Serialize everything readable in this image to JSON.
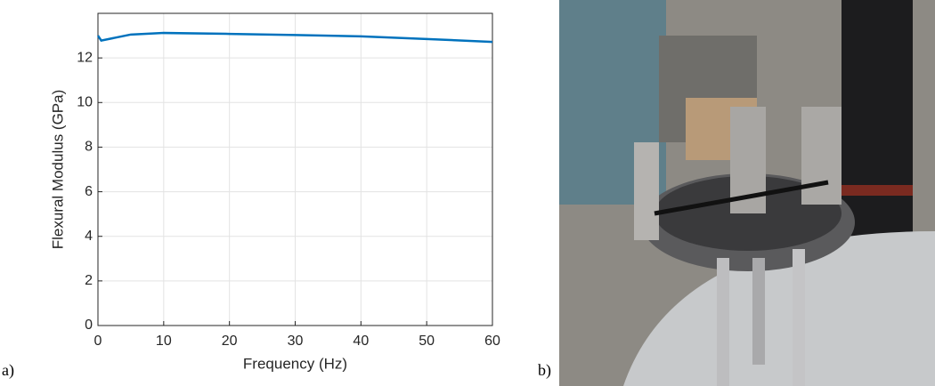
{
  "panel_labels": [
    "a)",
    "b)"
  ],
  "chart_data": {
    "type": "line",
    "xlabel": "Frequency (Hz)",
    "ylabel": "Flexural Modulus (GPa)",
    "x": [
      0,
      0.5,
      5,
      10,
      20,
      30,
      40,
      50,
      60
    ],
    "series": [
      {
        "color": "#0072bd",
        "values": [
          13.0,
          12.78,
          13.05,
          13.12,
          13.08,
          13.03,
          12.97,
          12.85,
          12.72
        ]
      }
    ],
    "xlim": [
      0,
      60
    ],
    "xticks": [
      0,
      10,
      20,
      30,
      40,
      50,
      60
    ],
    "ylim": [
      0,
      14
    ],
    "yticks": [
      0,
      2,
      4,
      6,
      8,
      10,
      12
    ],
    "grid": true
  }
}
